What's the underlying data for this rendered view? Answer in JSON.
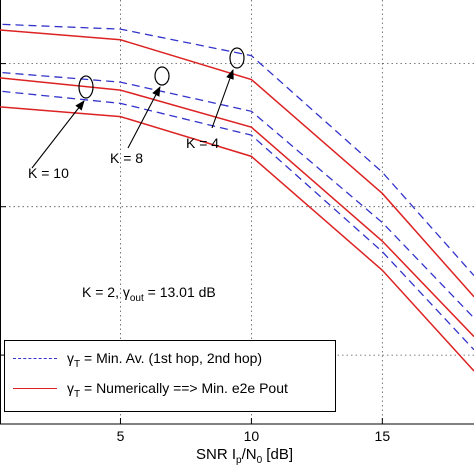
{
  "chart_data": {
    "type": "line",
    "xlabel": {
      "main": "SNR I",
      "sub1": "p",
      "mid": "/N",
      "sub2": "0",
      "tail": " [dB]"
    },
    "xticks": [
      5,
      10,
      15
    ],
    "xlim": [
      0.4,
      18.5
    ],
    "grid": true,
    "colors": {
      "dashed": "#3333cc",
      "solid": "#dd2222"
    },
    "params": {
      "k_part": "K = 2, ",
      "gamma": "γ",
      "sub": "out",
      "rest": " = 13.01 dB"
    },
    "legend": [
      {
        "gamma": "γ",
        "sub": "T",
        "text": " = Min. Av. (1st hop, 2nd hop)",
        "style": "dashed"
      },
      {
        "gamma": "γ",
        "sub": "T",
        "text": " = Numerically ==> Min. e2e Pout",
        "style": "solid"
      }
    ],
    "annotations": [
      {
        "text": "K = 10"
      },
      {
        "text": "K = 8"
      },
      {
        "text": "K = 4"
      }
    ],
    "series": [
      {
        "style": "dashed",
        "x": [
          0,
          5,
          10,
          15,
          18.5
        ],
        "y": [
          0.45,
          0.55,
          1.05,
          3.25,
          5.2
        ]
      },
      {
        "style": "solid",
        "x": [
          0,
          5,
          10,
          15,
          18.5
        ],
        "y": [
          0.55,
          0.75,
          1.5,
          3.65,
          5.6
        ]
      },
      {
        "style": "dashed",
        "x": [
          0,
          5,
          10,
          15,
          18.5
        ],
        "y": [
          1.35,
          1.55,
          2.1,
          4.2,
          6.0
        ]
      },
      {
        "style": "solid",
        "x": [
          0,
          5,
          10,
          15,
          18.5
        ],
        "y": [
          1.45,
          1.7,
          2.4,
          4.55,
          6.35
        ]
      },
      {
        "style": "dashed",
        "x": [
          0,
          5,
          10,
          15,
          18.5
        ],
        "y": [
          1.7,
          1.95,
          2.55,
          4.75,
          6.6
        ]
      },
      {
        "style": "solid",
        "x": [
          0,
          5,
          10,
          15,
          18.5
        ],
        "y": [
          2.0,
          2.2,
          2.95,
          5.1,
          7.0
        ]
      }
    ]
  }
}
